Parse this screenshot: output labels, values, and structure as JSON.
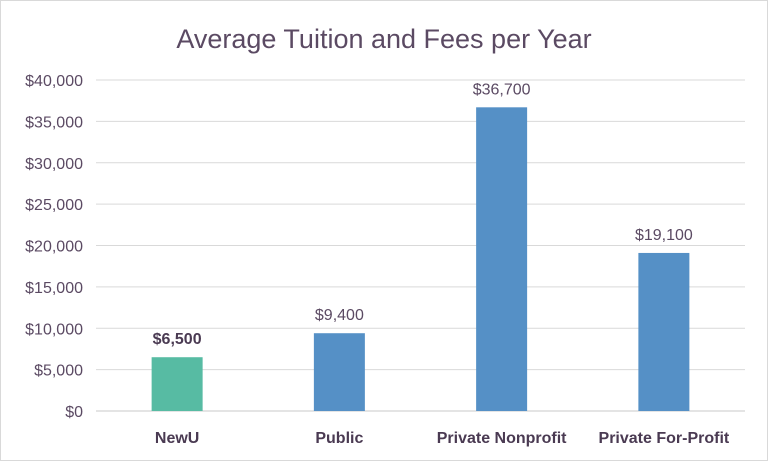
{
  "chart_data": {
    "type": "bar",
    "title": "Average Tuition and Fees per Year",
    "xlabel": "",
    "ylabel": "",
    "categories": [
      "NewU",
      "Public",
      "Private Nonprofit",
      "Private For-Profit"
    ],
    "values": [
      6500,
      9400,
      36700,
      19100
    ],
    "data_labels": [
      "$6,500",
      "$9,400",
      "$36,700",
      "$19,100"
    ],
    "highlight_index": 0,
    "ylim": [
      0,
      40000
    ],
    "yticks": [
      0,
      5000,
      10000,
      15000,
      20000,
      25000,
      30000,
      35000,
      40000
    ],
    "ytick_labels": [
      "$0",
      "$5,000",
      "$10,000",
      "$15,000",
      "$20,000",
      "$25,000",
      "$30,000",
      "$35,000",
      "$40,000"
    ],
    "grid": true,
    "legend": "none",
    "colors": {
      "bar": "#5590c6",
      "highlight_bar": "#57bba3",
      "grid": "#d9d9d9",
      "text": "#5b4a63"
    }
  }
}
